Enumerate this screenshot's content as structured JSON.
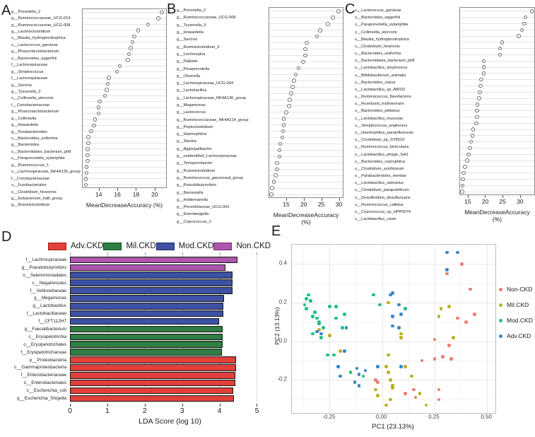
{
  "chart_data": [
    {
      "panel": "A",
      "type": "dot",
      "xlabel": "MeanDecreaseAccuracy (%)",
      "xticks": [
        14,
        16,
        18,
        20
      ],
      "xlim": [
        12.2,
        21.3
      ],
      "categories": [
        "g__Prevotella_2",
        "g__Ruminococcaceae_UCG-014",
        "g__Ruminococcaceae_UCG-008",
        "g__Lachnoclostridium",
        "s__Blautia_hydrogenotrophica",
        "s__Lactococcus_garvieae",
        "g__Phascolarctobacterium",
        "s__Bacteroides_eggerthii",
        "f__Lachnospiraceae",
        "g__Streptococcus",
        "f__Lachnospiraceae",
        "g__Sarcina",
        "g__Tyzzerella_3",
        "s__Collinsella_stercoris",
        "f__Coriobacteriaceae",
        "g__Phascolarctobacterium",
        "g__Collinsella",
        "g__Howardella",
        "g__Parabacteroides",
        "s__Bacteroides_uniformis",
        "g__Bacteroides",
        "s__Bacteroidales_bacterium_ph8",
        "s__Paraprevotella_xylaniphila",
        "g__Ruminococcus_1",
        "s__Lachnospiraceae_NK4A136_group",
        "f__Coriobacteriaceae",
        "o__Fusobacteriales",
        "s__Clostridium_hiranonis",
        "g__Eubacterium_halli_group",
        "g__Ruminiclostridium"
      ],
      "values": [
        20.8,
        20.4,
        19.3,
        18.2,
        17.8,
        17.6,
        17.4,
        17.2,
        17.1,
        16.2,
        15.9,
        15.0,
        14.9,
        14.8,
        14.6,
        14.0,
        13.9,
        13.9,
        13.5,
        13.4,
        13.1,
        12.8,
        12.8,
        12.7,
        12.7,
        12.7,
        12.6,
        12.6,
        12.5,
        12.5
      ]
    },
    {
      "panel": "B",
      "type": "dot",
      "xlabel": "MeanDecreaseAccuracy (%)",
      "xticks": [
        15,
        20,
        25,
        30
      ],
      "xlim": [
        10.0,
        31.3
      ],
      "categories": [
        "g__Prevotella_2",
        "g__Ruminococcaceae_UCG-008",
        "g__Tyzzerella_3",
        "g__Howardella",
        "g__Sarcina",
        "g__Ruminiclostridium_6",
        "g__Lachnospira",
        "g__Dialister",
        "g__Paraprevotella",
        "g__Olsenella",
        "g__Lachnospiraceae_UCG-004",
        "g__Lactobacillus",
        "g__Lachnospiraceae_NK4A136_group",
        "g__Megamonas",
        "g__Lactococcus",
        "g__Ruminococcaceae_NK4A214_group",
        "g__Peptoclostridium",
        "g__Haemophilus",
        "g__Slackia",
        "g__Aggregatibacter",
        "g__unidentified_Lachnospiraceae",
        "g__Terrisporobacter",
        "g__Ruminiclostridium",
        "g__Ruminococcus_gauvreauii_group",
        "g__Pseudobutyrivibrio",
        "g__Barnesiella",
        "g__Holdemanella",
        "g__Prevotellaceae_UCG-003",
        "g__Eisenbergiella",
        "g__Coprococcus_2"
      ],
      "values": [
        30.0,
        28.3,
        26.9,
        24.6,
        23.7,
        20.7,
        20.3,
        20.3,
        19.7,
        18.4,
        17.6,
        17.1,
        16.7,
        16.2,
        15.8,
        15.6,
        14.8,
        14.1,
        14.1,
        13.9,
        13.7,
        13.1,
        12.9,
        12.9,
        12.2,
        12.1,
        11.8,
        11.2,
        10.7,
        10.5
      ]
    },
    {
      "panel": "C",
      "type": "dot",
      "xlabel": "MeanDecreaseAccuracy (%)",
      "xticks": [
        15,
        20,
        25,
        30
      ],
      "xlim": [
        12.6,
        34.3
      ],
      "categories": [
        "s__Lactococcus_garvieae",
        "s__Bacteroides_eggerthii",
        "s__Paraprevotella_xylaniphila",
        "s__Collinsella_stercoris",
        "s__Blautia_hydrogenotrophica",
        "s__Clostridium_hiranonis",
        "s__Bacteroides_uniformis",
        "s__Bacteroidales_bacterium_ph8",
        "s__Lactobacillus_amylovorus",
        "s__Bifidobacterium_animalis",
        "s__Bacteroides_clarus",
        "s__Lactobacillus_sp_AB032",
        "s__Ruminococcus_flavefaciens",
        "s__Roseburia_inulinivorans",
        "s__Bacteroides_plebeius",
        "s__Lactobacillus_mucosae",
        "s__Streptococcus_anginosus",
        "s__Haemophilus_parainfluenzae",
        "s__Clostridium_sp_SY8519",
        "s__Ruminococcus_bicirculans",
        "s__Lactobacillus_phage_Sal3",
        "s__Bacteroides_coprophilus",
        "s__Clostridium_symbiosum",
        "s__Parabacteroides_merdae",
        "s__Lactobacillus_salivarius",
        "s__Clostridium_paraputrificum",
        "s__Desulfovibrio_desulfuricans",
        "s__Ruminococcus_callidus",
        "s__Coprococcus_sp_HPP0074",
        "s__Lactobacillus_casei"
      ],
      "values": [
        33.5,
        31.6,
        31.3,
        30.6,
        29.7,
        24.8,
        24.2,
        24.2,
        19.4,
        19.4,
        19.4,
        18.7,
        18.5,
        18.3,
        18.1,
        17.6,
        17.4,
        17.4,
        17.2,
        16.3,
        16.1,
        15.7,
        15.4,
        15.0,
        14.6,
        13.9,
        13.5,
        13.3,
        13.2,
        13.1
      ]
    },
    {
      "panel": "D",
      "type": "bar",
      "xlabel": "LDA Score (log 10)",
      "xticks": [
        0,
        1,
        2,
        3,
        4,
        5
      ],
      "xlim": [
        0,
        5.35
      ],
      "legend": [
        {
          "label": "Adv.CKD",
          "color": "#e2403a",
          "border": "#9c1d1d"
        },
        {
          "label": "Mil.CKD",
          "color": "#2e7d42",
          "border": "#14501f"
        },
        {
          "label": "Mod.CKD",
          "color": "#3e51a3",
          "border": "#1d2b66"
        },
        {
          "label": "Non.CKD",
          "color": "#b055ad",
          "border": "#6e2b6b"
        }
      ],
      "group_colors": {
        "Adv.CKD": "#e2403a",
        "Mil.CKD": "#2e7d42",
        "Mod.CKD": "#3e51a3",
        "Non.CKD": "#b055ad"
      },
      "bars": [
        {
          "label": "f__Lachnospiraceae",
          "value": 4.48,
          "group": "Non.CKD"
        },
        {
          "label": "g__Pseudobutyrivibrio",
          "value": 4.15,
          "group": "Non.CKD"
        },
        {
          "label": "o__Selenomonadales",
          "value": 4.35,
          "group": "Mod.CKD"
        },
        {
          "label": "c__Negativicutes",
          "value": 4.35,
          "group": "Mod.CKD"
        },
        {
          "label": "f__Veillonellaceae",
          "value": 4.35,
          "group": "Mod.CKD"
        },
        {
          "label": "g__Megamonas",
          "value": 4.13,
          "group": "Mod.CKD"
        },
        {
          "label": "g__Lactobacillus",
          "value": 4.11,
          "group": "Mod.CKD"
        },
        {
          "label": "f__Lactobacillaceae",
          "value": 4.11,
          "group": "Mod.CKD"
        },
        {
          "label": "f__CFT112H7",
          "value": 3.98,
          "group": "Mod.CKD"
        },
        {
          "label": "g__Faecalibacterium",
          "value": 4.08,
          "group": "Mil.CKD"
        },
        {
          "label": "c__Erysipelotrichia",
          "value": 4.08,
          "group": "Mil.CKD"
        },
        {
          "label": "o__Erysipelotrichales",
          "value": 4.08,
          "group": "Mil.CKD"
        },
        {
          "label": "f__Erysipelotrichaceae",
          "value": 4.06,
          "group": "Mil.CKD"
        },
        {
          "label": "p__Proteobacteria",
          "value": 4.45,
          "group": "Adv.CKD"
        },
        {
          "label": "c__Gammaproteobacteria",
          "value": 4.45,
          "group": "Adv.CKD"
        },
        {
          "label": "f__Enterobacteriaceae",
          "value": 4.43,
          "group": "Adv.CKD"
        },
        {
          "label": "o__Enterobacteriales",
          "value": 4.42,
          "group": "Adv.CKD"
        },
        {
          "label": "s__Escherichia_coli",
          "value": 4.37,
          "group": "Adv.CKD"
        },
        {
          "label": "g__Escherichia_Shigella",
          "value": 4.38,
          "group": "Adv.CKD"
        }
      ]
    },
    {
      "panel": "E",
      "type": "scatter",
      "xlabel": "PC1 (23.13%)",
      "ylabel": "PC2 (13.13%)",
      "xlim": [
        -0.43,
        0.54
      ],
      "ylim": [
        -0.37,
        0.5
      ],
      "xticks": [
        -0.25,
        0.0,
        0.25,
        0.5
      ],
      "xtick_labels": [
        "-0.25",
        "0.00",
        "0.25",
        "0.50"
      ],
      "yticks": [
        -0.2,
        0.0,
        0.2,
        0.4
      ],
      "ytick_labels": [
        "-0.2",
        "0.0",
        "0.2",
        "0.4"
      ],
      "xminor": [
        -0.375,
        -0.125,
        0.125,
        0.375
      ],
      "yminor": [
        -0.3,
        -0.1,
        0.1,
        0.3
      ],
      "legend": [
        {
          "label": "Non-CKD",
          "color": "#ee7d70"
        },
        {
          "label": "Mil.CKD",
          "color": "#b9b120"
        },
        {
          "label": "Mod.CKD",
          "color": "#1fc07c"
        },
        {
          "label": "Adv.CKD",
          "color": "#3687c8"
        }
      ],
      "series": [
        {
          "name": "Non-CKD",
          "color": "#ee7d70",
          "points": [
            [
              0.38,
              0.4
            ],
            [
              0.31,
              0.35
            ],
            [
              0.42,
              0.27
            ],
            [
              0.36,
              0.12
            ],
            [
              0.44,
              0.14
            ],
            [
              0.4,
              0.1
            ],
            [
              0.25,
              0.01
            ],
            [
              0.32,
              -0.02
            ],
            [
              0.25,
              -0.09
            ],
            [
              0.29,
              -0.08
            ],
            [
              0.33,
              -0.09
            ],
            [
              0.19,
              -0.1
            ],
            [
              -0.03,
              -0.2
            ],
            [
              -0.02,
              -0.21
            ],
            [
              0.11,
              -0.27
            ],
            [
              0.16,
              -0.29
            ],
            [
              0.27,
              -0.25
            ],
            [
              0.27,
              -0.3
            ],
            [
              0.15,
              -0.25
            ]
          ]
        },
        {
          "name": "Mil.CKD",
          "color": "#b9b120",
          "points": [
            [
              0.03,
              0.2
            ],
            [
              0.28,
              0.17
            ],
            [
              0.32,
              0.18
            ],
            [
              0.27,
              0.13
            ],
            [
              0.34,
              0.02
            ],
            [
              0.09,
              0.04
            ],
            [
              0.09,
              0.02
            ],
            [
              -0.25,
              0.03
            ],
            [
              -0.3,
              0.06
            ],
            [
              0.03,
              -0.07
            ],
            [
              0.02,
              -0.13
            ],
            [
              0.11,
              -0.13
            ],
            [
              0.03,
              -0.16
            ],
            [
              0.14,
              -0.18
            ],
            [
              0.04,
              -0.2
            ],
            [
              0.05,
              -0.23
            ],
            [
              0.05,
              -0.24
            ],
            [
              -0.03,
              -0.25
            ],
            [
              -0.02,
              -0.28
            ],
            [
              0.02,
              -0.33
            ],
            [
              0.04,
              -0.3
            ],
            [
              0.18,
              -0.27
            ],
            [
              0.21,
              -0.33
            ],
            [
              -0.2,
              -0.05
            ]
          ]
        },
        {
          "name": "Mod.CKD",
          "color": "#1fc07c",
          "points": [
            [
              -0.35,
              0.24
            ],
            [
              -0.36,
              0.22
            ],
            [
              -0.34,
              0.21
            ],
            [
              -0.37,
              0.19
            ],
            [
              -0.36,
              0.17
            ],
            [
              -0.32,
              0.15
            ],
            [
              -0.33,
              0.13
            ],
            [
              -0.31,
              0.12
            ],
            [
              -0.25,
              0.18
            ],
            [
              -0.22,
              0.18
            ],
            [
              -0.3,
              0.1
            ],
            [
              -0.3,
              0.09
            ],
            [
              -0.28,
              0.07
            ],
            [
              -0.33,
              0.04
            ],
            [
              -0.29,
              0.02
            ],
            [
              -0.22,
              0.12
            ],
            [
              -0.18,
              0.14
            ],
            [
              -0.19,
              0.07
            ],
            [
              -0.26,
              -0.07
            ],
            [
              -0.23,
              -0.07
            ],
            [
              -0.15,
              -0.16
            ],
            [
              -0.09,
              -0.18
            ],
            [
              -0.04,
              0.24
            ],
            [
              -0.01,
              0.19
            ],
            [
              0.11,
              0.17
            ]
          ]
        },
        {
          "name": "Adv.CKD",
          "color": "#3687c8",
          "points": [
            [
              0.31,
              0.46
            ],
            [
              0.36,
              0.46
            ],
            [
              0.31,
              0.37
            ],
            [
              0.04,
              0.24
            ],
            [
              0.05,
              0.25
            ],
            [
              0.08,
              0.19
            ],
            [
              0.05,
              0.13
            ],
            [
              0.05,
              0.08
            ],
            [
              -0.31,
              0.05
            ],
            [
              -0.29,
              0.04
            ],
            [
              -0.17,
              0.07
            ],
            [
              0.09,
              0.14
            ],
            [
              0.08,
              0.07
            ],
            [
              -0.18,
              -0.05
            ],
            [
              -0.21,
              -0.13
            ],
            [
              -0.2,
              -0.18
            ],
            [
              -0.12,
              -0.14
            ],
            [
              -0.08,
              -0.15
            ],
            [
              -0.11,
              -0.17
            ],
            [
              -0.13,
              -0.21
            ],
            [
              -0.11,
              -0.23
            ],
            [
              -0.02,
              -0.13
            ],
            [
              0.09,
              -0.13
            ]
          ]
        }
      ]
    }
  ]
}
